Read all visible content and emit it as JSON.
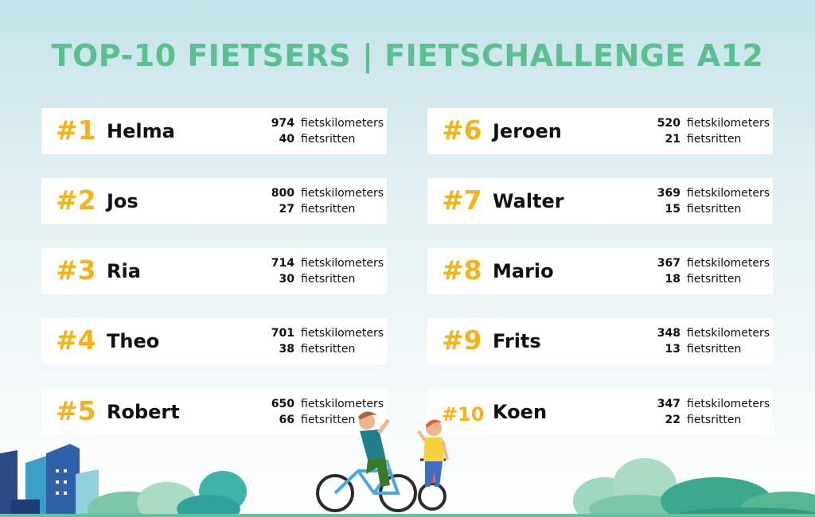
{
  "title": "TOP-10 FIETSERS | FIETSCHALLENGE A12",
  "unit_km": "fietskilometers",
  "unit_rides": "fietsritten",
  "colors": {
    "title": "#5bc08f",
    "rank": "#f6b21b"
  },
  "riders": [
    {
      "rank": "#1",
      "name": "Helma",
      "km": "974",
      "rides": "40"
    },
    {
      "rank": "#2",
      "name": "Jos",
      "km": "800",
      "rides": "27"
    },
    {
      "rank": "#3",
      "name": "Ria",
      "km": "714",
      "rides": "30"
    },
    {
      "rank": "#4",
      "name": "Theo",
      "km": "701",
      "rides": "38"
    },
    {
      "rank": "#5",
      "name": "Robert",
      "km": "650",
      "rides": "66"
    },
    {
      "rank": "#6",
      "name": "Jeroen",
      "km": "520",
      "rides": "21"
    },
    {
      "rank": "#7",
      "name": "Walter",
      "km": "369",
      "rides": "15"
    },
    {
      "rank": "#8",
      "name": "Mario",
      "km": "367",
      "rides": "18"
    },
    {
      "rank": "#9",
      "name": "Frits",
      "km": "348",
      "rides": "13"
    },
    {
      "rank": "#10",
      "name": "Koen",
      "km": "347",
      "rides": "22"
    }
  ]
}
